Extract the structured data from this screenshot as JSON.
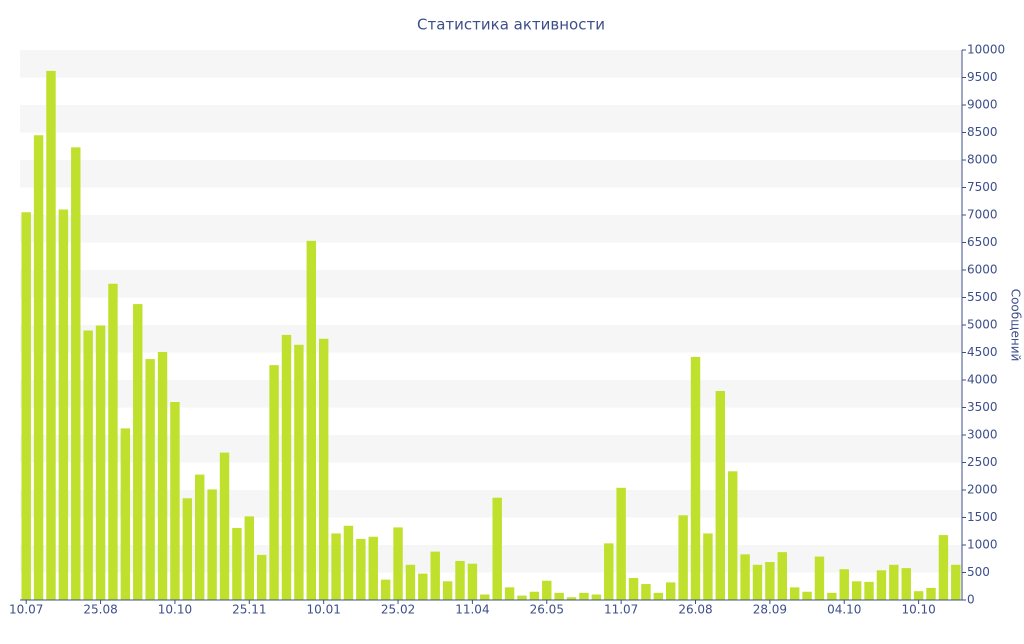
{
  "chart_data": {
    "type": "bar",
    "title": "Статистика активности",
    "y_axis_label": "Сообщений",
    "categories": [
      "10.07",
      null,
      null,
      null,
      null,
      null,
      "25.08",
      null,
      null,
      null,
      null,
      null,
      "10.10",
      null,
      null,
      null,
      null,
      null,
      "25.11",
      null,
      null,
      null,
      null,
      null,
      "10.01",
      null,
      null,
      null,
      null,
      null,
      "25.02",
      null,
      null,
      null,
      null,
      null,
      "11.04",
      null,
      null,
      null,
      null,
      null,
      "26.05",
      null,
      null,
      null,
      null,
      null,
      "11.07",
      null,
      null,
      null,
      null,
      null,
      "26.08",
      null,
      null,
      null,
      null,
      null,
      "28.09",
      null,
      null,
      null,
      null,
      null,
      "04.10",
      null,
      null,
      null,
      null,
      null,
      "10.10",
      null,
      null,
      null
    ],
    "values": [
      7050,
      8450,
      9620,
      7100,
      8230,
      4900,
      4990,
      5750,
      3120,
      5380,
      4380,
      4510,
      3600,
      1850,
      2280,
      2010,
      2680,
      1310,
      1520,
      820,
      4270,
      4820,
      4640,
      6530,
      4750,
      1210,
      1350,
      1110,
      1150,
      370,
      1320,
      640,
      480,
      880,
      340,
      710,
      660,
      100,
      1860,
      230,
      80,
      150,
      350,
      130,
      50,
      130,
      100,
      1030,
      2040,
      400,
      290,
      130,
      320,
      1540,
      4420,
      1210,
      3800,
      2340,
      830,
      640,
      690,
      870,
      230,
      150,
      790,
      130,
      560,
      340,
      330,
      540,
      640,
      580,
      160,
      220,
      1180,
      640
    ],
    "color": "#bfe02c",
    "ylim": [
      0,
      10000
    ],
    "yticks": [
      0,
      500,
      1000,
      1500,
      2000,
      2500,
      3000,
      3500,
      4000,
      4500,
      5000,
      5500,
      6000,
      6500,
      7000,
      7500,
      8000,
      8500,
      9000,
      9500,
      10000
    ],
    "grid": true
  }
}
